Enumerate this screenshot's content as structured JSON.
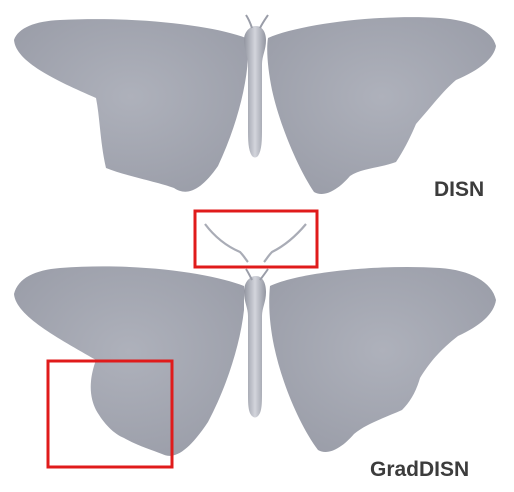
{
  "figure": {
    "top_label": "DISN",
    "bottom_label": "GradDISN"
  },
  "colors": {
    "mesh": "#a9acb6",
    "mesh_shade": "#8e919c",
    "highlight_box": "#e01b1b",
    "label": "#3c3c3c"
  }
}
